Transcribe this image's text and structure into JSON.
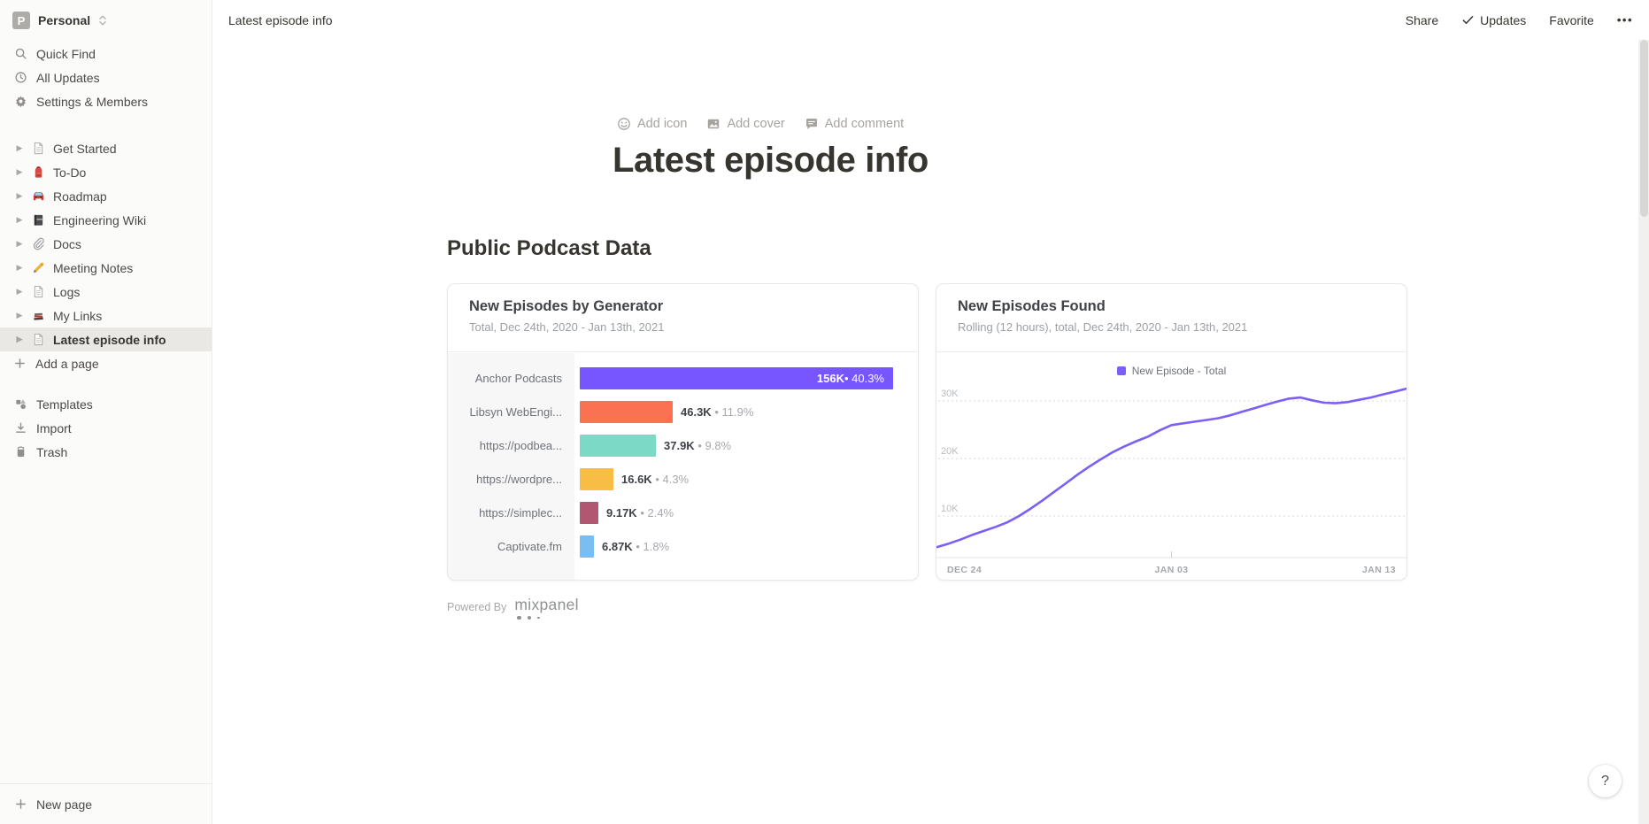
{
  "workspace": {
    "avatar_letter": "P",
    "name": "Personal"
  },
  "topbar": {
    "breadcrumb": "Latest episode info",
    "share_label": "Share",
    "updates_label": "Updates",
    "favorite_label": "Favorite",
    "more_label": "•••"
  },
  "sidebar": {
    "menu": [
      {
        "icon": "search",
        "label": "Quick Find"
      },
      {
        "icon": "clock",
        "label": "All Updates"
      },
      {
        "icon": "gear",
        "label": "Settings & Members"
      }
    ],
    "pages": [
      {
        "icon": "page",
        "label": "Get Started"
      },
      {
        "icon": "backpack",
        "label": "To-Do"
      },
      {
        "icon": "car",
        "label": "Roadmap"
      },
      {
        "icon": "notebook",
        "label": "Engineering Wiki"
      },
      {
        "icon": "paperclip",
        "label": "Docs"
      },
      {
        "icon": "pencil",
        "label": "Meeting Notes"
      },
      {
        "icon": "page",
        "label": "Logs"
      },
      {
        "icon": "books",
        "label": "My Links"
      },
      {
        "icon": "page",
        "label": "Latest episode info",
        "selected": true
      }
    ],
    "add_page_label": "Add a page",
    "footer": [
      {
        "icon": "templates",
        "label": "Templates"
      },
      {
        "icon": "import",
        "label": "Import"
      },
      {
        "icon": "trash",
        "label": "Trash"
      }
    ],
    "new_page_label": "New page"
  },
  "page": {
    "controls": {
      "add_icon": "Add icon",
      "add_cover": "Add cover",
      "add_comment": "Add comment"
    },
    "title": "Latest episode info",
    "section_heading": "Public Podcast Data",
    "powered_by": "Powered By",
    "brand": "mixpanel"
  },
  "chart_data": [
    {
      "type": "bar",
      "orientation": "horizontal",
      "title": "New Episodes by Generator",
      "subtitle": "Total, Dec 24th, 2020 - Jan 13th, 2021",
      "categories": [
        "Anchor Podcasts",
        "Libsyn WebEngi...",
        "https://podbea...",
        "https://wordpre...",
        "https://simplec...",
        "Captivate.fm"
      ],
      "values": [
        156000,
        46300,
        37900,
        16600,
        9170,
        6870
      ],
      "value_labels": [
        "156K",
        "46.3K",
        "37.9K",
        "16.6K",
        "9.17K",
        "6.87K"
      ],
      "percent_labels": [
        "40.3%",
        "11.9%",
        "9.8%",
        "4.3%",
        "2.4%",
        "1.8%"
      ],
      "separator": " • ",
      "bar_colors": [
        "#7856ff",
        "#fa7252",
        "#7cd9c6",
        "#f8bd45",
        "#b25771",
        "#7abdf0"
      ],
      "xlim": [
        0,
        156000
      ],
      "grid": false
    },
    {
      "type": "line",
      "title": "New Episodes Found",
      "subtitle": "Rolling (12 hours), total, Dec 24th, 2020 - Jan 13th, 2021",
      "legend": [
        "New Episode - Total"
      ],
      "legend_position": "top",
      "line_color": "#7b5ff6",
      "grid": "horizontal-dashed",
      "x_tick_labels": [
        "DEC 24",
        "JAN 03",
        "JAN 13"
      ],
      "x_range": [
        "Dec 24, 2020",
        "Jan 13, 2021"
      ],
      "y_ticks": [
        10000,
        20000,
        30000
      ],
      "y_tick_labels": [
        "10K",
        "20K",
        "30K"
      ],
      "ylim": [
        0,
        35000
      ],
      "values": [
        4600,
        5200,
        5900,
        6700,
        7400,
        8100,
        8900,
        10000,
        11300,
        12700,
        14200,
        15700,
        17200,
        18600,
        19900,
        21100,
        22100,
        23000,
        23800,
        24900,
        25800,
        26100,
        26400,
        26700,
        27000,
        27500,
        28100,
        28700,
        29300,
        29900,
        30400,
        30600,
        30100,
        29700,
        29600,
        29800,
        30200,
        30600,
        31100,
        31600,
        32100
      ]
    }
  ],
  "help_label": "?"
}
